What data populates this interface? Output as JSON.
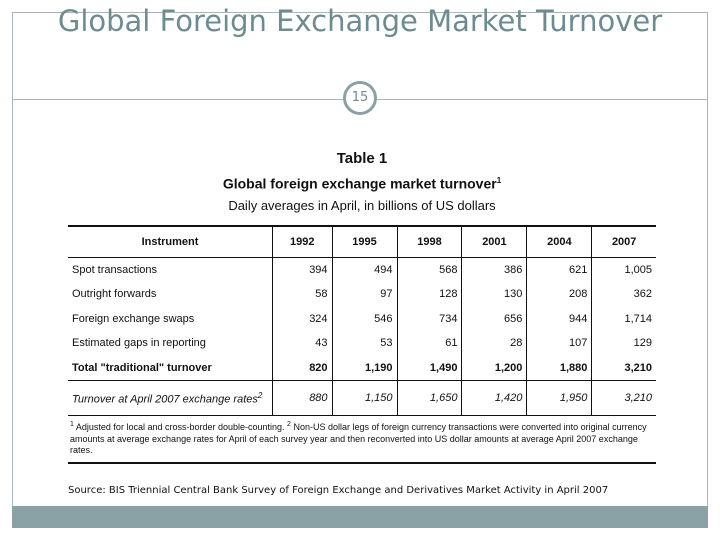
{
  "slide": {
    "title": "Global Foreign Exchange Market Turnover",
    "page_number": "15",
    "source": "Source: BIS Triennial Central Bank Survey of Foreign Exchange and Derivatives Market Activity in April 2007"
  },
  "table": {
    "label": "Table 1",
    "title": "Global foreign exchange market turnover",
    "title_sup": "1",
    "subtitle": "Daily averages in April, in billions of US dollars",
    "header": {
      "instrument": "Instrument",
      "years": [
        "1992",
        "1995",
        "1998",
        "2001",
        "2004",
        "2007"
      ]
    },
    "rows": [
      {
        "label": "Spot transactions",
        "values": [
          "394",
          "494",
          "568",
          "386",
          "621",
          "1,005"
        ]
      },
      {
        "label": "Outright forwards",
        "values": [
          "58",
          "97",
          "128",
          "130",
          "208",
          "362"
        ]
      },
      {
        "label": "Foreign exchange swaps",
        "values": [
          "324",
          "546",
          "734",
          "656",
          "944",
          "1,714"
        ]
      },
      {
        "label": "Estimated gaps in reporting",
        "values": [
          "43",
          "53",
          "61",
          "28",
          "107",
          "129"
        ]
      },
      {
        "label": "Total \"traditional\" turnover",
        "values": [
          "820",
          "1,190",
          "1,490",
          "1,200",
          "1,880",
          "3,210"
        ]
      },
      {
        "label": "Turnover at April 2007 exchange rates",
        "sup": "2",
        "values": [
          "880",
          "1,150",
          "1,650",
          "1,420",
          "1,950",
          "3,210"
        ]
      }
    ],
    "footnote": {
      "sup1": "1",
      "part1": " Adjusted for local and cross-border double-counting. ",
      "sup2": "2",
      "part2": " Non-US dollar legs of foreign currency transactions were converted into original currency amounts at average exchange rates for April of each survey year and then reconverted into US dollar amounts at average April 2007 exchange rates."
    }
  }
}
